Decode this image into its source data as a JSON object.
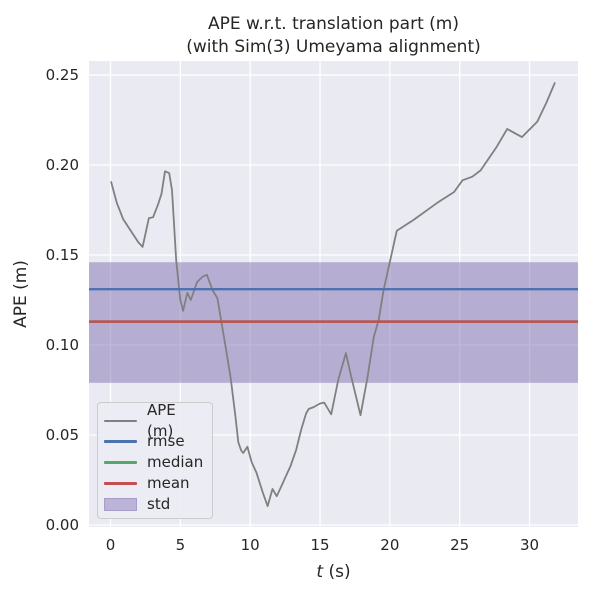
{
  "title": {
    "line1": "APE w.r.t. translation part (m)",
    "line2": "(with Sim(3) Umeyama alignment)"
  },
  "axes": {
    "xlabel_var": "t",
    "xlabel_unit": " (s)",
    "ylabel": "APE (m)",
    "x_ticks": [
      "0",
      "5",
      "10",
      "15",
      "20",
      "25",
      "30"
    ],
    "y_ticks": [
      "0.00",
      "0.05",
      "0.10",
      "0.15",
      "0.20",
      "0.25"
    ]
  },
  "legend": [
    {
      "label": "APE (m)",
      "color": "#808080",
      "type": "line"
    },
    {
      "label": "rmse",
      "color": "#4c72b0",
      "type": "line"
    },
    {
      "label": "median",
      "color": "#55a868",
      "type": "line"
    },
    {
      "label": "mean",
      "color": "#c44e52",
      "type": "line"
    },
    {
      "label": "std",
      "color": "#8172b2",
      "type": "patch"
    }
  ],
  "colors": {
    "axes_background": "#eaeaf2",
    "grid": "#ffffff",
    "ape_line": "#808080",
    "rmse": "#4c72b0",
    "median": "#55a868",
    "mean": "#c44e52",
    "std_fill": "#8172b2",
    "text": "#262626"
  },
  "chart_data": {
    "type": "line",
    "title": "APE w.r.t. translation part (m)",
    "subtitle": "(with Sim(3) Umeyama alignment)",
    "xlabel": "t (s)",
    "ylabel": "APE (m)",
    "xlim": [
      -1.54,
      33.47
    ],
    "ylim": [
      -0.0011,
      0.2578
    ],
    "grid": true,
    "legend_position": "lower left",
    "x_ticks": [
      0,
      5,
      10,
      15,
      20,
      25,
      30
    ],
    "y_ticks": [
      0.0,
      0.05,
      0.1,
      0.15,
      0.2,
      0.25
    ],
    "stats": {
      "rmse": 0.131,
      "median": 0.113,
      "mean": 0.113,
      "std": 0.034,
      "std_band": [
        0.079,
        0.146
      ]
    },
    "series": [
      {
        "name": "APE (m)",
        "x": [
          0.05,
          0.45,
          0.9,
          1.4,
          2.0,
          2.3,
          2.75,
          3.05,
          3.4,
          3.65,
          3.9,
          4.2,
          4.4,
          4.7,
          5.0,
          5.2,
          5.5,
          5.75,
          6.2,
          6.6,
          6.9,
          7.3,
          7.65,
          8.2,
          8.6,
          8.95,
          9.15,
          9.35,
          9.5,
          9.8,
          10.1,
          10.45,
          10.9,
          11.25,
          11.6,
          11.9,
          12.2,
          12.55,
          12.9,
          13.3,
          13.65,
          14.0,
          14.2,
          14.55,
          15.0,
          15.3,
          15.8,
          16.3,
          16.85,
          17.25,
          17.9,
          18.4,
          18.85,
          19.2,
          19.55,
          20.5,
          21.7,
          23.4,
          24.6,
          25.2,
          25.9,
          26.5,
          27.6,
          28.4,
          29.45,
          30.55,
          31.2,
          31.8
        ],
        "y": [
          0.1905,
          0.179,
          0.17,
          0.164,
          0.157,
          0.1545,
          0.1705,
          0.171,
          0.178,
          0.184,
          0.1965,
          0.1955,
          0.186,
          0.147,
          0.125,
          0.119,
          0.129,
          0.125,
          0.135,
          0.138,
          0.139,
          0.1305,
          0.126,
          0.101,
          0.082,
          0.06,
          0.046,
          0.0415,
          0.04,
          0.0435,
          0.035,
          0.029,
          0.018,
          0.0105,
          0.02,
          0.016,
          0.021,
          0.027,
          0.033,
          0.042,
          0.053,
          0.062,
          0.0645,
          0.0655,
          0.0675,
          0.068,
          0.0615,
          0.0805,
          0.0955,
          0.082,
          0.061,
          0.082,
          0.1045,
          0.114,
          0.1305,
          0.1635,
          0.1695,
          0.179,
          0.185,
          0.1915,
          0.1935,
          0.197,
          0.2095,
          0.22,
          0.2155,
          0.224,
          0.2345,
          0.2455
        ]
      }
    ]
  }
}
